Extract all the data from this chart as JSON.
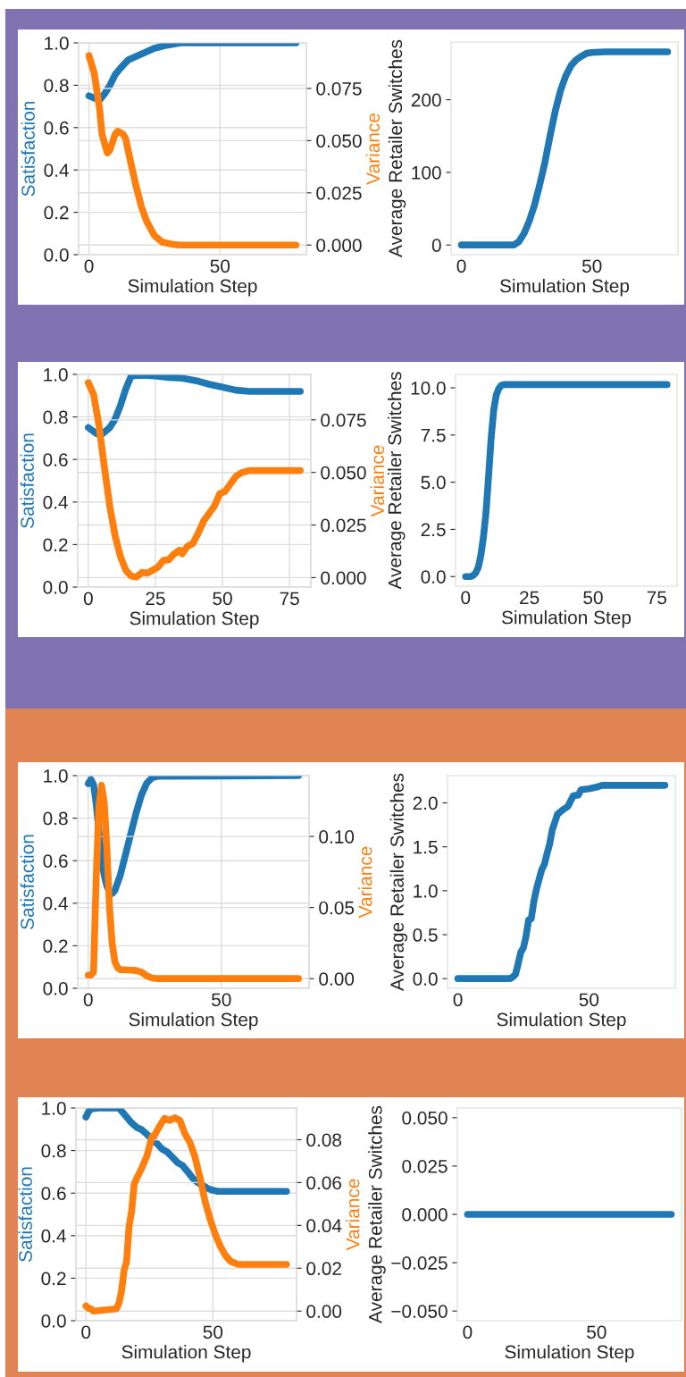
{
  "chart_data": [
    {
      "type": "line",
      "xlabel": "Simulation Step",
      "ylabel": "Satisfaction",
      "y2label": "Variance",
      "grid": true,
      "line_style": "solid",
      "xlim": [
        -3.95,
        82.95
      ],
      "xticks": [
        0,
        50
      ],
      "ylim": [
        0,
        1.0
      ],
      "yticks": [
        {
          "value": 0,
          "label": "0.0"
        },
        {
          "value": 0.2,
          "label": "0.2"
        },
        {
          "value": 0.4,
          "label": "0.4"
        },
        {
          "value": 0.6,
          "label": "0.6"
        },
        {
          "value": 0.8,
          "label": "0.8"
        },
        {
          "value": 1.0,
          "label": "1.0"
        }
      ],
      "y2lim": [
        -0.0046,
        0.0968
      ],
      "y2ticks": [
        {
          "value": 0,
          "label": "0.000"
        },
        {
          "value": 0.025,
          "label": "0.025"
        },
        {
          "value": 0.05,
          "label": "0.050"
        },
        {
          "value": 0.075,
          "label": "0.075"
        }
      ],
      "series": [
        {
          "color": "#1f77b4",
          "x": [
            0,
            2,
            4,
            6,
            8,
            10,
            12,
            15,
            20,
            25,
            30,
            35,
            79
          ],
          "values": [
            0.75,
            0.74,
            0.73,
            0.76,
            0.8,
            0.85,
            0.88,
            0.92,
            0.947,
            0.975,
            0.99,
            1.0,
            1.0
          ]
        },
        {
          "color": "#ff7f0e",
          "axis": "y2",
          "x": [
            0,
            2,
            4,
            5,
            7,
            8,
            10,
            11,
            13,
            14,
            16,
            18,
            20,
            22,
            25,
            28,
            32,
            35,
            79
          ],
          "values": [
            0.0907,
            0.0824,
            0.0657,
            0.053,
            0.0441,
            0.0455,
            0.0531,
            0.0545,
            0.0531,
            0.051,
            0.0392,
            0.0281,
            0.0184,
            0.0114,
            0.0045,
            0.0014,
            0.0003,
            0,
            0
          ]
        }
      ]
    },
    {
      "type": "line",
      "xlabel": "Simulation Step",
      "ylabel": "Average Retailer Switches",
      "grid": false,
      "line_style": "solid",
      "xlim": [
        -3.95,
        82.95
      ],
      "xticks": [
        0,
        50
      ],
      "ylim": [
        -13.3,
        279.5
      ],
      "yticks": [
        0,
        100,
        200
      ],
      "series": [
        {
          "color": "#1f77b4",
          "x": [
            0,
            20,
            22,
            24,
            26,
            28,
            30,
            32,
            34,
            36,
            38,
            40,
            42,
            44,
            46,
            48,
            50,
            55,
            79
          ],
          "values": [
            0,
            0,
            4.5,
            16,
            33,
            55,
            83,
            114,
            151,
            185,
            213,
            233,
            247,
            255,
            260,
            264,
            265,
            266,
            266
          ]
        }
      ]
    },
    {
      "type": "line",
      "xlabel": "Simulation Step",
      "ylabel": "Satisfaction",
      "y2label": "Variance",
      "grid": true,
      "line_style": "solid",
      "xlim": [
        -3.95,
        82.95
      ],
      "xticks": [
        0,
        25,
        50,
        75
      ],
      "ylim": [
        0,
        1.0
      ],
      "yticks": [
        {
          "value": 0,
          "label": "0.0"
        },
        {
          "value": 0.2,
          "label": "0.2"
        },
        {
          "value": 0.4,
          "label": "0.4"
        },
        {
          "value": 0.6,
          "label": "0.6"
        },
        {
          "value": 0.8,
          "label": "0.8"
        },
        {
          "value": 1.0,
          "label": "1.0"
        }
      ],
      "y2lim": [
        -0.0045,
        0.0966
      ],
      "y2ticks": [
        {
          "value": 0,
          "label": "0.000"
        },
        {
          "value": 0.025,
          "label": "0.025"
        },
        {
          "value": 0.05,
          "label": "0.050"
        },
        {
          "value": 0.075,
          "label": "0.075"
        }
      ],
      "series": [
        {
          "color": "#1f77b4",
          "x": [
            0,
            3,
            5,
            8,
            10,
            12,
            14,
            16,
            20,
            25,
            30,
            35,
            40,
            45,
            50,
            55,
            60,
            79
          ],
          "values": [
            0.75,
            0.722,
            0.718,
            0.75,
            0.79,
            0.855,
            0.933,
            0.993,
            0.996,
            0.993,
            0.986,
            0.982,
            0.971,
            0.954,
            0.94,
            0.926,
            0.92,
            0.92
          ]
        },
        {
          "color": "#ff7f0e",
          "axis": "y2",
          "x": [
            0,
            2,
            4,
            6,
            8,
            10,
            12,
            14,
            16,
            18,
            20,
            22,
            24,
            26,
            28,
            30,
            32,
            34,
            35,
            37,
            39,
            41,
            43,
            45,
            47,
            49,
            51,
            53,
            55,
            57,
            60,
            79
          ],
          "values": [
            0.0927,
            0.087,
            0.0722,
            0.0524,
            0.034,
            0.0198,
            0.0099,
            0.0035,
            0.0007,
            0.0003,
            0.0025,
            0.0021,
            0.0035,
            0.005,
            0.0082,
            0.0085,
            0.0113,
            0.013,
            0.0113,
            0.0149,
            0.0163,
            0.0212,
            0.0269,
            0.0304,
            0.034,
            0.0399,
            0.041,
            0.0446,
            0.0481,
            0.0498,
            0.0509,
            0.0509
          ]
        }
      ]
    },
    {
      "type": "line",
      "xlabel": "Simulation Step",
      "ylabel": "Average Retailer Switches",
      "grid": false,
      "line_style": "solid",
      "xlim": [
        -3.95,
        82.95
      ],
      "xticks": [
        0,
        25,
        50,
        75
      ],
      "ylim": [
        -0.51,
        10.71
      ],
      "yticks": [
        {
          "value": 0,
          "label": "0.0"
        },
        {
          "value": 2.5,
          "label": "2.5"
        },
        {
          "value": 5,
          "label": "5.0"
        },
        {
          "value": 7.5,
          "label": "7.5"
        },
        {
          "value": 10,
          "label": "10.0"
        }
      ],
      "series": [
        {
          "color": "#1f77b4",
          "x": [
            0,
            2,
            3,
            4,
            5,
            6,
            7,
            8,
            9,
            10,
            11,
            12,
            13,
            14,
            15,
            79
          ],
          "values": [
            0,
            0,
            0.06,
            0.2,
            0.5,
            1.14,
            2.1,
            3.4,
            5.3,
            7.3,
            8.8,
            9.6,
            9.96,
            10.13,
            10.17,
            10.17
          ]
        }
      ]
    },
    {
      "type": "line",
      "xlabel": "Simulation Step",
      "ylabel": "Satisfaction",
      "y2label": "Variance",
      "grid": true,
      "line_style": "solid",
      "xlim": [
        -3.95,
        82.95
      ],
      "xticks": [
        0,
        50
      ],
      "ylim": [
        0,
        1.0
      ],
      "yticks": [
        {
          "value": 0,
          "label": "0.0"
        },
        {
          "value": 0.2,
          "label": "0.2"
        },
        {
          "value": 0.4,
          "label": "0.4"
        },
        {
          "value": 0.6,
          "label": "0.6"
        },
        {
          "value": 0.8,
          "label": "0.8"
        },
        {
          "value": 1.0,
          "label": "1.0"
        }
      ],
      "y2lim": [
        -0.0068,
        0.1428
      ],
      "y2ticks": [
        {
          "value": 0,
          "label": "0.00"
        },
        {
          "value": 0.05,
          "label": "0.05"
        },
        {
          "value": 0.1,
          "label": "0.10"
        }
      ],
      "series": [
        {
          "color": "#1f77b4",
          "x": [
            0,
            1,
            2,
            3,
            4,
            5,
            6,
            7,
            8,
            9,
            10,
            12,
            14,
            16,
            18,
            20,
            22,
            24,
            26,
            79
          ],
          "values": [
            0.962,
            0.982,
            0.958,
            0.867,
            0.74,
            0.614,
            0.53,
            0.481,
            0.453,
            0.446,
            0.46,
            0.53,
            0.628,
            0.727,
            0.825,
            0.909,
            0.965,
            0.99,
            0.997,
            1.0
          ]
        },
        {
          "color": "#ff7f0e",
          "axis": "y2",
          "x": [
            0,
            1,
            2,
            3,
            4,
            5,
            6,
            7,
            8,
            9,
            10,
            11,
            12,
            15,
            18,
            20,
            22,
            24,
            26,
            79
          ],
          "values": [
            0.0025,
            0.0025,
            0.0046,
            0.071,
            0.121,
            0.136,
            0.124,
            0.092,
            0.05,
            0.0246,
            0.012,
            0.0078,
            0.0063,
            0.0061,
            0.0057,
            0.0046,
            0.0019,
            0.0004,
            0,
            0
          ]
        }
      ]
    },
    {
      "type": "line",
      "xlabel": "Simulation Step",
      "ylabel": "Average Retailer Switches",
      "grid": false,
      "line_style": "solid",
      "xlim": [
        -3.95,
        82.95
      ],
      "xticks": [
        0,
        50
      ],
      "ylim": [
        -0.11,
        2.31
      ],
      "yticks": [
        {
          "value": 0,
          "label": "0.0"
        },
        {
          "value": 0.5,
          "label": "0.5"
        },
        {
          "value": 1,
          "label": "1.0"
        },
        {
          "value": 1.5,
          "label": "1.5"
        },
        {
          "value": 2,
          "label": "2.0"
        }
      ],
      "series": [
        {
          "color": "#1f77b4",
          "x": [
            0,
            20,
            21,
            22,
            23,
            24,
            25,
            26,
            27,
            28,
            29,
            30,
            31,
            32,
            33,
            34,
            35,
            36,
            37,
            38,
            40,
            42,
            43,
            44,
            46,
            47,
            50,
            53,
            55,
            79
          ],
          "values": [
            0,
            0,
            0.02,
            0.05,
            0.17,
            0.3,
            0.35,
            0.48,
            0.67,
            0.68,
            0.88,
            1.02,
            1.13,
            1.24,
            1.3,
            1.42,
            1.53,
            1.69,
            1.78,
            1.87,
            1.92,
            1.96,
            2.02,
            2.08,
            2.09,
            2.15,
            2.16,
            2.18,
            2.2,
            2.2
          ]
        }
      ]
    },
    {
      "type": "line",
      "xlabel": "Simulation Step",
      "ylabel": "Satisfaction",
      "y2label": "Variance",
      "grid": true,
      "line_style": "solid",
      "xlim": [
        -3.95,
        82.95
      ],
      "xticks": [
        0,
        50
      ],
      "ylim": [
        0,
        1.0
      ],
      "yticks": [
        {
          "value": 0,
          "label": "0.0"
        },
        {
          "value": 0.2,
          "label": "0.2"
        },
        {
          "value": 0.4,
          "label": "0.4"
        },
        {
          "value": 0.6,
          "label": "0.6"
        },
        {
          "value": 0.8,
          "label": "0.8"
        },
        {
          "value": 1.0,
          "label": "1.0"
        }
      ],
      "y2lim": [
        -0.0045,
        0.0948
      ],
      "y2ticks": [
        {
          "value": 0,
          "label": "0.00"
        },
        {
          "value": 0.02,
          "label": "0.02"
        },
        {
          "value": 0.04,
          "label": "0.04"
        },
        {
          "value": 0.06,
          "label": "0.06"
        },
        {
          "value": 0.08,
          "label": "0.08"
        }
      ],
      "series": [
        {
          "color": "#1f77b4",
          "x": [
            0,
            1,
            2,
            5,
            13,
            14,
            16,
            18,
            20,
            22,
            24,
            26,
            28,
            30,
            32,
            34,
            36,
            38,
            40,
            42,
            44,
            46,
            48,
            50,
            52,
            79
          ],
          "values": [
            0.958,
            0.982,
            0.996,
            1.0,
            1.0,
            0.986,
            0.958,
            0.93,
            0.909,
            0.898,
            0.877,
            0.853,
            0.832,
            0.807,
            0.794,
            0.769,
            0.744,
            0.73,
            0.702,
            0.671,
            0.65,
            0.636,
            0.622,
            0.613,
            0.608,
            0.608
          ]
        },
        {
          "color": "#ff7f0e",
          "axis": "y2",
          "x": [
            0,
            1,
            2,
            3,
            12,
            13,
            14,
            15,
            16,
            17,
            18,
            19,
            20,
            22,
            24,
            26,
            27,
            28,
            30,
            31,
            33,
            35,
            37,
            39,
            41,
            43,
            45,
            47,
            49,
            51,
            53,
            55,
            57,
            60,
            79
          ],
          "values": [
            0.0024,
            0.0012,
            0.001,
            0,
            0.001,
            0.0037,
            0.0093,
            0.019,
            0.023,
            0.0398,
            0.0467,
            0.0592,
            0.062,
            0.0668,
            0.0724,
            0.0814,
            0.082,
            0.0842,
            0.0883,
            0.09,
            0.089,
            0.0903,
            0.089,
            0.0828,
            0.0786,
            0.0717,
            0.062,
            0.0509,
            0.0426,
            0.0356,
            0.0301,
            0.0259,
            0.0232,
            0.0218,
            0.0218
          ]
        }
      ]
    },
    {
      "type": "line",
      "xlabel": "Simulation Step",
      "ylabel": "Average Retailer Switches",
      "grid": false,
      "line_style": "solid",
      "xlim": [
        -3.95,
        82.95
      ],
      "xticks": [
        0,
        50
      ],
      "ylim": [
        -0.055,
        0.055
      ],
      "yticks": [
        {
          "value": -0.05,
          "label": "−0.050"
        },
        {
          "value": -0.025,
          "label": "−0.025"
        },
        {
          "value": 0,
          "label": "0.000"
        },
        {
          "value": 0.025,
          "label": "0.025"
        },
        {
          "value": 0.05,
          "label": "0.050"
        }
      ],
      "series": [
        {
          "color": "#1f77b4",
          "x": [
            0,
            79
          ],
          "values": [
            0,
            0
          ]
        }
      ]
    }
  ]
}
